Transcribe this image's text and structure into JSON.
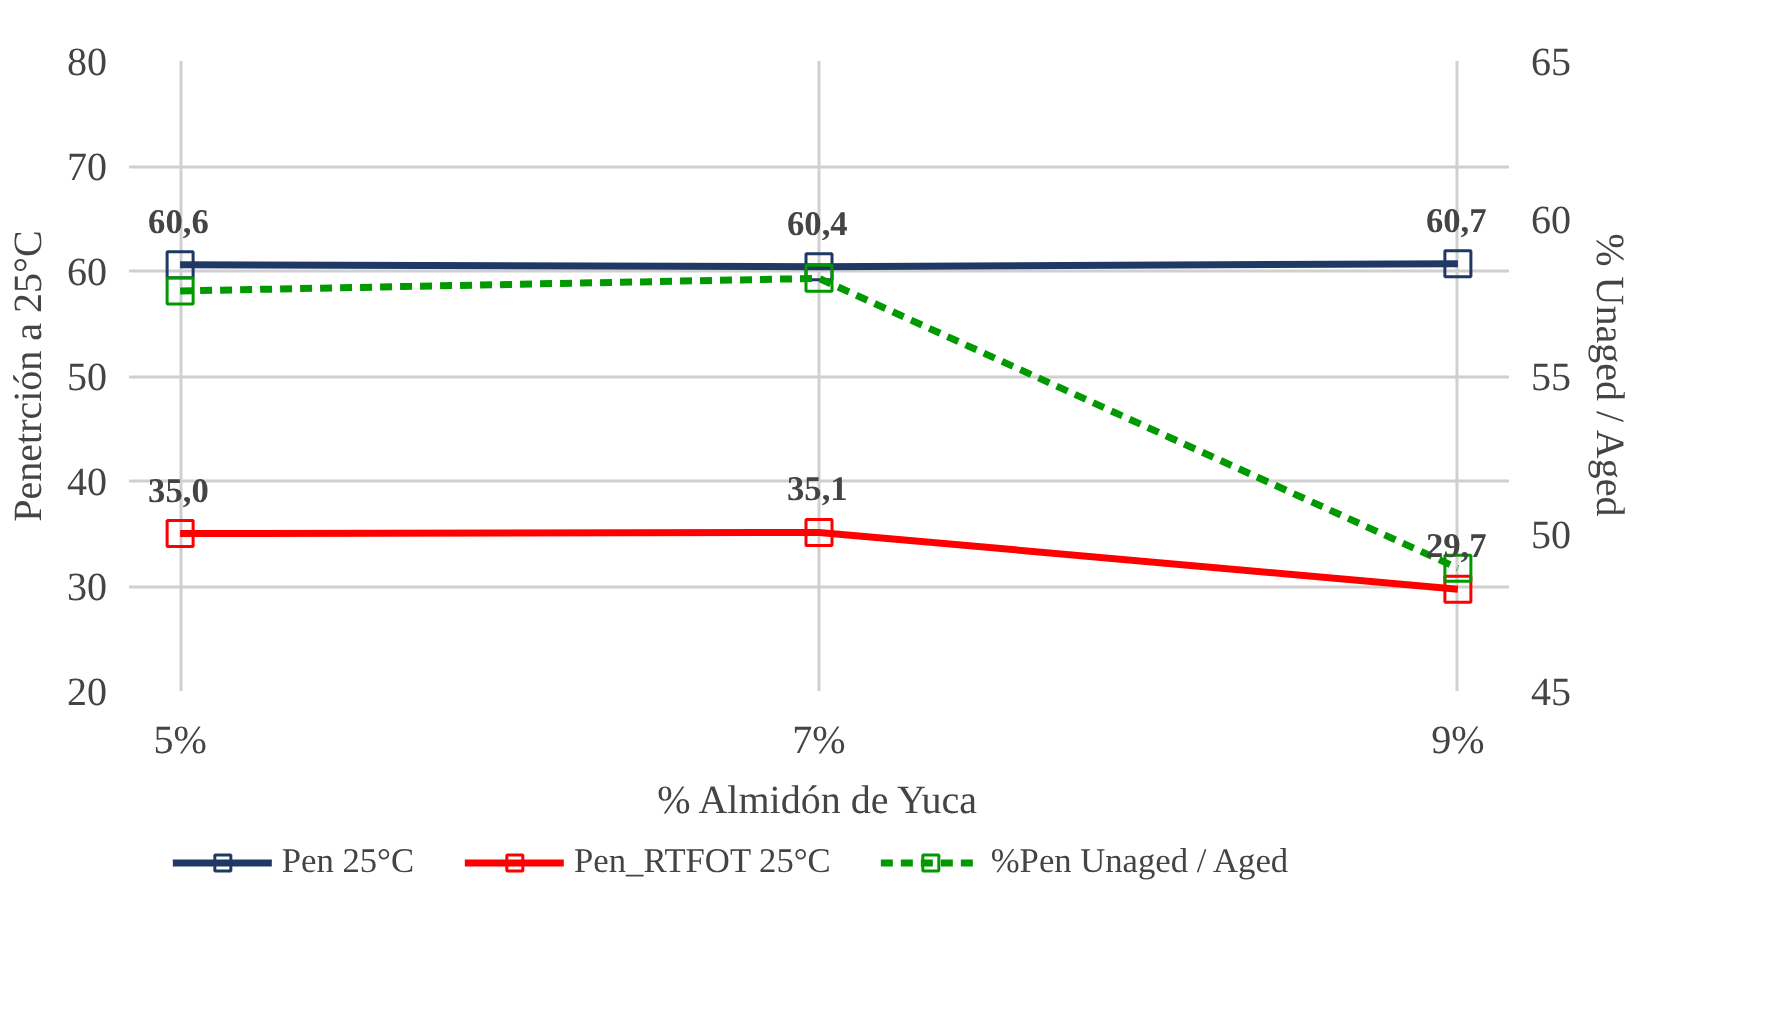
{
  "chart_data": {
    "type": "line",
    "xlabel": "% Almidón de Yuca",
    "ylabel": "Penetrción a 25°C",
    "y2label": "% Unaged / Aged",
    "categories": [
      "5%",
      "7%",
      "9%"
    ],
    "ylim": [
      20,
      80
    ],
    "yticks": [
      20,
      30,
      40,
      50,
      60,
      70,
      80
    ],
    "y2lim": [
      45,
      65
    ],
    "y2ticks": [
      45,
      50,
      55,
      60,
      65
    ],
    "grid": true,
    "legend": "bottom",
    "marker": "square",
    "series": [
      {
        "name": "Pen 25°C",
        "color": "#203864",
        "values": [
          60.6,
          60.4,
          60.7
        ],
        "value_labels": [
          "60,6",
          "60,4",
          "60,7"
        ],
        "line_style": "solid"
      },
      {
        "name": "Pen_RTFOT 25°C",
        "color": "#ff0000",
        "values": [
          35.0,
          35.1,
          29.7
        ],
        "value_labels": [
          "35,0",
          "35,1",
          "29,7"
        ],
        "line_style": "solid"
      },
      {
        "name": "%Pen Unaged / Aged",
        "color": "#009900",
        "values": [
          57.7,
          58.1,
          48.9
        ],
        "axis": "y2",
        "line_style": "dashed"
      }
    ]
  }
}
